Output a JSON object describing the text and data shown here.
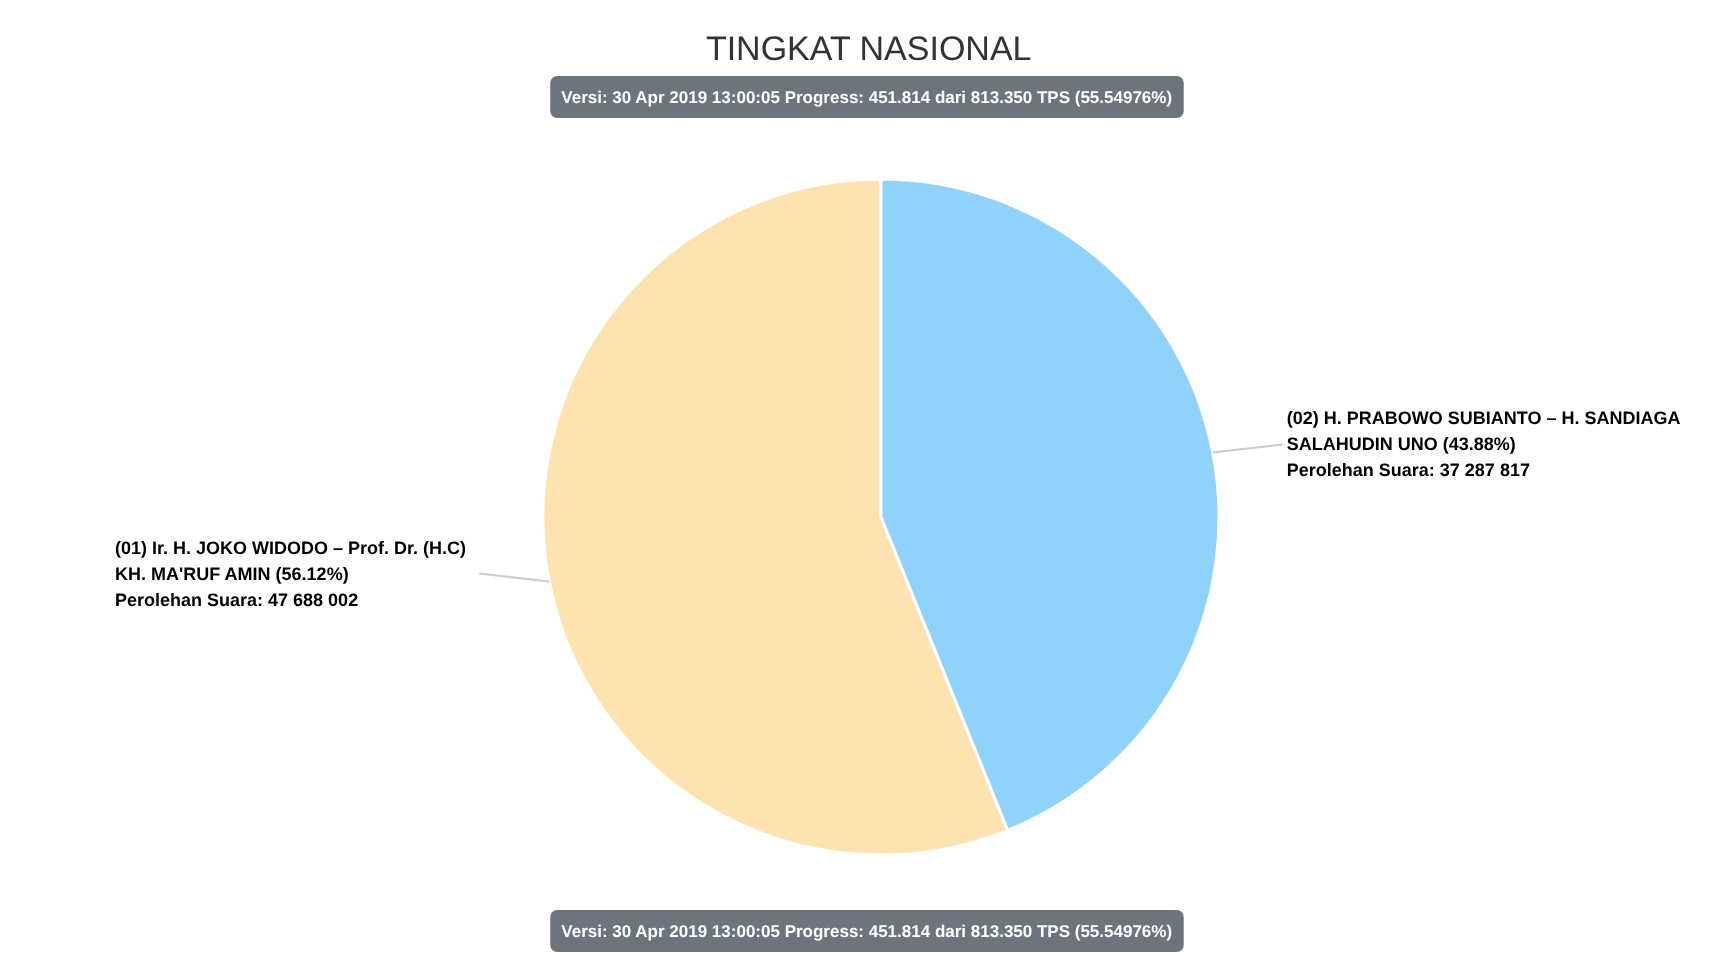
{
  "chart_data": {
    "type": "pie",
    "title": "TINGKAT NASIONAL",
    "subtitle": "Versi: 30 Apr 2019 13:00:05 Progress: 451.814 dari 813.350 TPS (55.54976%)",
    "annotations": [
      "Versi: 30 Apr 2019 13:00:05 Progress: 451.814 dari 813.350 TPS (55.54976%)"
    ],
    "categories": [
      "(01) Ir. H. JOKO WIDODO – Prof. Dr. (H.C) KH. MA'RUF AMIN",
      "(02) H. PRABOWO SUBIANTO – H. SANDIAGA SALAHUDIN UNO"
    ],
    "values": [
      47688002,
      37287817
    ],
    "value_labels": [
      "(56.12%)\nPerolehan Suara: 47 688 002",
      "(43.88%)\nPerolehan Suara: 37 287 817"
    ],
    "colors": [
      "#fee3b1",
      "#8fd3fb"
    ]
  }
}
